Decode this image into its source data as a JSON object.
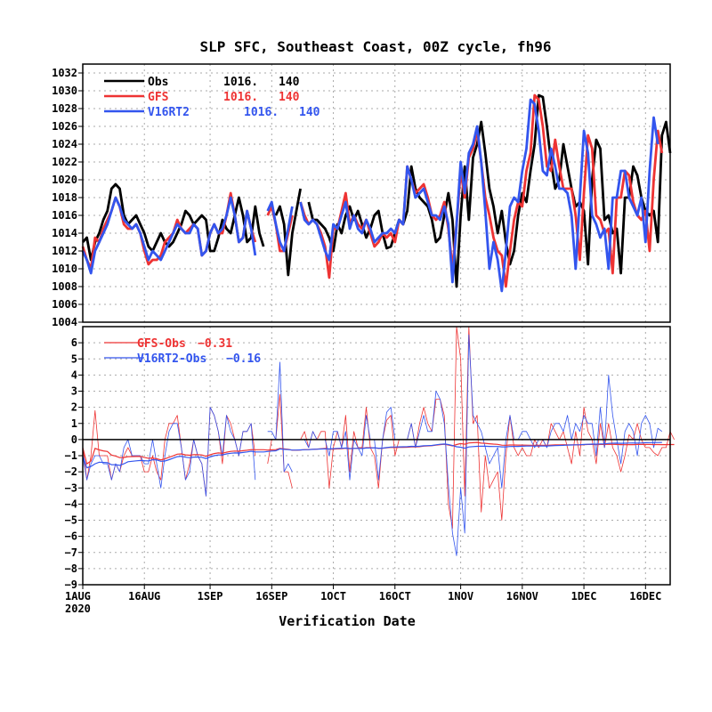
{
  "chart_data": [
    {
      "type": "line",
      "title": "SLP SFC, Southeast Coast, 00Z cycle, fh96",
      "xlabel": "Verification Date",
      "ylabel": "",
      "x_start": "2020-08-01",
      "x_end": "2020-12-22",
      "ylim": [
        1004,
        1033
      ],
      "yticks": [
        1004,
        1006,
        1008,
        1010,
        1012,
        1014,
        1016,
        1018,
        1020,
        1022,
        1024,
        1026,
        1028,
        1030,
        1032
      ],
      "grid": true,
      "legend_position": "top-left",
      "series": [
        {
          "name": "Obs",
          "stat1": "1016.",
          "stat2": "140",
          "color": "#000000",
          "values": [
            1013,
            1013.5,
            1011,
            1013,
            1014,
            1015.5,
            1016.5,
            1019,
            1019.5,
            1019,
            1016,
            1015,
            1015.5,
            1016,
            1015,
            1014,
            1012.5,
            1012,
            1013,
            1014,
            1013,
            1012.5,
            1013,
            1014,
            1015,
            1016.5,
            1016,
            1015,
            1015.5,
            1016,
            1015.5,
            1012,
            1012,
            1013.5,
            1015.5,
            1014.5,
            1014,
            1016,
            1018,
            1016,
            1013,
            1013.5,
            1017,
            1014,
            1012.5,
            null,
            null,
            1016,
            1017,
            1015,
            1009.3,
            1014,
            1016.5,
            1019,
            null,
            1017.5,
            1015.5,
            1015.5,
            1015,
            1014.5,
            1013.5,
            1012,
            1015,
            1014,
            1016,
            1017,
            1015.5,
            1016.5,
            1015,
            1013.5,
            1014.5,
            1016,
            1016.5,
            1014,
            1012.3,
            1012.5,
            1014,
            1015.5,
            1015,
            1016.5,
            1021.5,
            1019,
            1018,
            1017.5,
            1017,
            1015.5,
            1013,
            1013.5,
            1016,
            1018.5,
            1015.5,
            1008,
            1016,
            1021.5,
            1015.5,
            1022.5,
            1024,
            1026.5,
            1023,
            1019,
            1017,
            1014,
            1016.5,
            1013,
            1010.5,
            1012,
            1016,
            1018.5,
            1017.5,
            1021,
            1024,
            1029.5,
            1029.3,
            1026,
            1022,
            1019,
            1020,
            1024,
            1021.5,
            1019,
            1017,
            1017.5,
            1016.5,
            1010.5,
            1020,
            1024.5,
            1023.5,
            1015.5,
            1016,
            1014,
            1014.5,
            1009.5,
            1018,
            1018,
            1021.5,
            1020.5,
            1018,
            1016.5,
            1016,
            1016.5,
            1013,
            1025,
            1026.5,
            1023
          ]
        },
        {
          "name": "GFS",
          "stat1": "1016.",
          "stat2": "140",
          "color": "#ee3333",
          "values": [
            1012.5,
            1011,
            1010,
            1013.5,
            1013,
            1014.5,
            1015.5,
            1016.5,
            1018,
            1017,
            1015,
            1014.5,
            1014.5,
            1015,
            1014,
            1012,
            1010.5,
            1011,
            1011,
            1011.5,
            1013,
            1013.5,
            1014,
            1015.5,
            1014.5,
            1014,
            1014.5,
            1015,
            1014.5,
            1011.5,
            1012,
            1014,
            1015,
            1014,
            1014,
            1016,
            1018.5,
            1016,
            1013,
            1013.5,
            1016.5,
            1014.5,
            1013,
            null,
            null,
            1016,
            1017,
            1015,
            1012,
            1012,
            1014,
            1016,
            null,
            1017.5,
            1016,
            1015,
            1015.5,
            1015,
            1014,
            1012.5,
            1009,
            1014.5,
            1014.5,
            1016.5,
            1018.5,
            1015,
            1016,
            1015,
            1014.5,
            1015.5,
            1014,
            1012.5,
            1013,
            1014,
            1013.5,
            1014,
            1013,
            1015.5,
            1015,
            1021.5,
            1020,
            1018.5,
            1019,
            1019.5,
            1018,
            1016,
            1015.5,
            1016,
            1017.5,
            1014.5,
            1010,
            1015,
            1021,
            1018,
            1022.5,
            1023.5,
            1025.5,
            1022,
            1018,
            1016,
            1013.5,
            1012,
            1011.5,
            1008,
            1012,
            1015.5,
            1017.5,
            1017,
            1021,
            1023,
            1029.5,
            1029,
            1026,
            1021.5,
            1021,
            1024.5,
            1021.5,
            1019,
            1019,
            1019,
            1016,
            1011,
            1018.5,
            1025,
            1023.5,
            1016,
            1015.5,
            1014,
            1014.5,
            1009.5,
            1018,
            1018,
            1021,
            1020.5,
            1017.5,
            1016,
            1015.5,
            1016.5,
            1012,
            1020,
            1025.5,
            1023
          ]
        },
        {
          "name": "V16RT2",
          "stat1": "1016.",
          "stat2": "140",
          "color": "#3355ee",
          "values": [
            1012,
            1011,
            1009.5,
            1012,
            1013,
            1014,
            1015,
            1016.5,
            1018,
            1017,
            1015.5,
            1015,
            1014.5,
            1015,
            1014,
            1012.5,
            1011,
            1012,
            1011.5,
            1011,
            1012,
            1013,
            1014,
            1015,
            1014.5,
            1014,
            1014,
            1015,
            1014.5,
            1011.5,
            1012,
            1014,
            1015,
            1014,
            1014.5,
            1016,
            1018,
            1016,
            1013,
            1013.5,
            1016.5,
            1014.5,
            1011.5,
            null,
            null,
            1016.5,
            1017.5,
            1015,
            1013,
            1012,
            1014.5,
            1017,
            null,
            1017.5,
            1015.5,
            1015,
            1015.5,
            1015,
            1013.5,
            1012,
            1011,
            1015,
            1014.5,
            1016,
            1017.5,
            1014.5,
            1016,
            1014.5,
            1014,
            1015.5,
            1014.5,
            1013,
            1013.5,
            1014,
            1014,
            1014.5,
            1014,
            1015.5,
            1015,
            1021.5,
            1020,
            1018,
            1018.5,
            1019,
            1017.5,
            1016,
            1016,
            1015.5,
            1017,
            1015,
            1008.5,
            1015,
            1022,
            1018.5,
            1023,
            1024,
            1026,
            1022,
            1016.5,
            1010,
            1013,
            1011,
            1007.5,
            1012,
            1017,
            1018,
            1017.5,
            1021,
            1023.5,
            1029,
            1028.5,
            1025.5,
            1021,
            1020.5,
            1023.5,
            1021.5,
            1019,
            1019,
            1018.5,
            1016,
            1010,
            1018,
            1025.5,
            1023,
            1016,
            1015,
            1013.5,
            1014.5,
            1010,
            1018,
            1018,
            1021,
            1021,
            1018,
            1017,
            1016,
            1018,
            1013,
            1021,
            1027,
            1024
          ]
        }
      ]
    },
    {
      "type": "line",
      "title": "",
      "xlabel": "Verification Date",
      "ylabel": "",
      "ylim": [
        -9,
        7
      ],
      "yticks": [
        -9,
        -8,
        -7,
        -6,
        -5,
        -4,
        -3,
        -2,
        -1,
        0,
        1,
        2,
        3,
        4,
        5,
        6
      ],
      "grid": true,
      "legend_position": "top-left",
      "series": [
        {
          "name": "GFS-Obs",
          "stat": "-0.31",
          "color": "#ee3333",
          "values": [
            -0.5,
            -2.5,
            -1,
            1.8,
            -1,
            -1,
            -1,
            -2.5,
            -1.5,
            -2,
            -1,
            -0.5,
            -1,
            -1,
            -1,
            -2,
            -2,
            -1,
            -2,
            -2.5,
            0,
            1,
            1,
            1.5,
            -0.5,
            -2.5,
            -1.5,
            0,
            -1,
            -1.5,
            -3.5,
            2,
            1.5,
            0.5,
            -1.5,
            1.5,
            1,
            0,
            -1,
            0.5,
            0.5,
            1,
            -1,
            null,
            null,
            -1.5,
            0,
            0,
            2.8,
            -2,
            -2,
            -3,
            null,
            0,
            0.5,
            -0.5,
            0.5,
            0,
            0.5,
            0.5,
            -3,
            -0.5,
            0.5,
            -0.5,
            1.5,
            -2,
            0.5,
            -0.5,
            -0.5,
            2,
            -0.5,
            -1,
            -3,
            0,
            1.2,
            1.5,
            -1,
            0,
            0,
            0,
            1,
            -0.5,
            1,
            2,
            1,
            0.5,
            2.5,
            2.5,
            1.5,
            -4,
            -5.5,
            7,
            5,
            -3.5,
            7,
            1,
            1.5,
            -4.5,
            -1,
            -3,
            -2.5,
            -2,
            -5,
            -1,
            1.5,
            -0.5,
            -1,
            -0.5,
            -1,
            -1,
            0,
            -0.5,
            0,
            -0.5,
            1,
            0.5,
            0,
            0.5,
            -0.5,
            -1.5,
            0.5,
            -1,
            2,
            0.5,
            0,
            -1.5,
            1,
            -0.5,
            1,
            -0.5,
            -1,
            -2,
            -1,
            0.3,
            0,
            1,
            0,
            -0.5,
            -0.5,
            -0.8,
            -1,
            -0.5,
            -0.5,
            0.5,
            0
          ]
        },
        {
          "name": "V16RT2-Obs",
          "stat": "-0.16",
          "color": "#3355ee",
          "values": [
            -1,
            -2.5,
            -1.5,
            -1,
            -1,
            -1.5,
            -1.5,
            -2.5,
            -1.5,
            -2,
            -0.5,
            0,
            -1,
            -1,
            -1,
            -1.5,
            -1.5,
            0,
            -1.5,
            -3,
            -1,
            0.5,
            1,
            1,
            -0.5,
            -2.5,
            -2,
            0,
            -1,
            -1.5,
            -3.5,
            2,
            1.5,
            0.5,
            -1,
            1.5,
            0.5,
            0,
            -1,
            0.5,
            0.5,
            1,
            -2.5,
            null,
            null,
            0.5,
            0.5,
            0,
            4.8,
            -2,
            -1.5,
            -2,
            null,
            0,
            0,
            -0.5,
            0.5,
            0,
            0,
            0,
            -1,
            0.5,
            0.5,
            -0.5,
            0.5,
            -2.5,
            0,
            -0.5,
            -1,
            1.5,
            0,
            0,
            -2.5,
            0,
            1.7,
            2,
            0,
            0,
            0,
            0,
            1,
            -0.5,
            0.5,
            1.5,
            0.5,
            0.5,
            3,
            2.5,
            1,
            -2.8,
            -5.8,
            -7.2,
            -3,
            -5.8,
            6.5,
            1.5,
            1,
            0.5,
            -0.5,
            -1.5,
            -1,
            -0.5,
            -3,
            0,
            1.5,
            0,
            0,
            0.5,
            0.5,
            0,
            -0.5,
            0,
            0,
            -0.5,
            0.5,
            1,
            1,
            0.5,
            1.5,
            0,
            1,
            0.5,
            1.5,
            1,
            1,
            -1,
            2,
            -0.5,
            4,
            1.5,
            0,
            -1.5,
            0.5,
            1,
            0.5,
            -1,
            1,
            1.5,
            1,
            -0.5,
            0.7,
            0.5
          ]
        }
      ]
    }
  ],
  "x_ticks": [
    {
      "label": "1AUG",
      "sub": "2020",
      "day": 0
    },
    {
      "label": "16AUG",
      "sub": "",
      "day": 15
    },
    {
      "label": "1SEP",
      "sub": "",
      "day": 31
    },
    {
      "label": "16SEP",
      "sub": "",
      "day": 46
    },
    {
      "label": "1OCT",
      "sub": "",
      "day": 61
    },
    {
      "label": "16OCT",
      "sub": "",
      "day": 76
    },
    {
      "label": "1NOV",
      "sub": "",
      "day": 92
    },
    {
      "label": "16NOV",
      "sub": "",
      "day": 107
    },
    {
      "label": "1DEC",
      "sub": "",
      "day": 122
    },
    {
      "label": "16DEC",
      "sub": "",
      "day": 137
    }
  ]
}
